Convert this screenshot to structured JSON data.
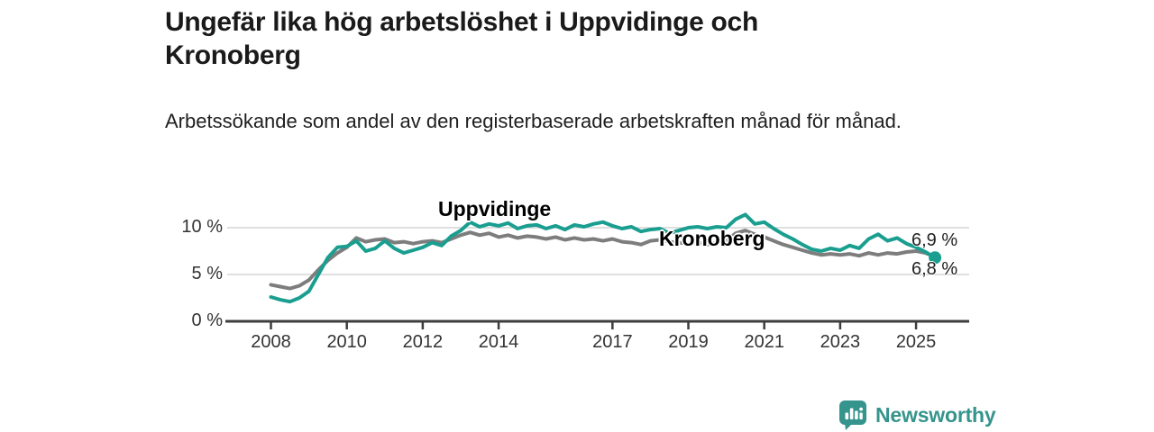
{
  "header": {
    "title": "Ungefär lika hög arbetslöshet i Uppvidinge och Kronoberg",
    "subtitle": "Arbetssökande som andel av den registerbaserade arbetskraften månad för månad."
  },
  "chart_data": {
    "type": "line",
    "title": "Ungefär lika hög arbetslöshet i Uppvidinge och Kronoberg",
    "subtitle": "Arbetssökande som andel av den registerbaserade arbetskraften månad för månad.",
    "x_unit": "year (monthly observations)",
    "y_unit": "percent",
    "x_ticks": [
      2008,
      2010,
      2012,
      2014,
      2017,
      2019,
      2021,
      2023,
      2025
    ],
    "y_ticks": [
      0,
      5,
      10
    ],
    "y_tick_suffix": " %",
    "xlim": [
      2006.8,
      2026.4
    ],
    "ylim": [
      0,
      12.6
    ],
    "grid": "horizontal",
    "legend_position": "inline-labels",
    "x": [
      2008.0,
      2008.25,
      2008.5,
      2008.75,
      2009.0,
      2009.25,
      2009.5,
      2009.75,
      2010.0,
      2010.25,
      2010.5,
      2010.75,
      2011.0,
      2011.25,
      2011.5,
      2011.75,
      2012.0,
      2012.25,
      2012.5,
      2012.75,
      2013.0,
      2013.25,
      2013.5,
      2013.75,
      2014.0,
      2014.25,
      2014.5,
      2014.75,
      2015.0,
      2015.25,
      2015.5,
      2015.75,
      2016.0,
      2016.25,
      2016.5,
      2016.75,
      2017.0,
      2017.25,
      2017.5,
      2017.75,
      2018.0,
      2018.25,
      2018.5,
      2018.75,
      2019.0,
      2019.25,
      2019.5,
      2019.75,
      2020.0,
      2020.25,
      2020.5,
      2020.75,
      2021.0,
      2021.25,
      2021.5,
      2021.75,
      2022.0,
      2022.25,
      2022.5,
      2022.75,
      2023.0,
      2023.25,
      2023.5,
      2023.75,
      2024.0,
      2024.25,
      2024.5,
      2024.75,
      2025.0,
      2025.25,
      2025.5
    ],
    "series": [
      {
        "name": "Uppvidinge",
        "color": "#1a9e90",
        "end_dot": true,
        "end_label": "6,8 %",
        "last_value": 6.8,
        "values": [
          2.6,
          2.3,
          2.1,
          2.5,
          3.2,
          5.0,
          6.8,
          7.9,
          8.0,
          8.6,
          7.5,
          7.8,
          8.6,
          7.8,
          7.3,
          7.6,
          7.9,
          8.4,
          8.1,
          9.1,
          9.7,
          10.6,
          10.1,
          10.4,
          10.2,
          10.5,
          9.9,
          10.2,
          10.3,
          9.9,
          10.2,
          9.8,
          10.3,
          10.1,
          10.4,
          10.6,
          10.2,
          9.9,
          10.1,
          9.6,
          9.8,
          9.9,
          9.4,
          9.7,
          10.0,
          10.1,
          9.9,
          10.1,
          10.0,
          10.9,
          11.4,
          10.4,
          10.6,
          9.9,
          9.3,
          8.8,
          8.2,
          7.7,
          7.5,
          7.8,
          7.6,
          8.1,
          7.8,
          8.8,
          9.3,
          8.6,
          8.9,
          8.3,
          7.9,
          7.4,
          6.8
        ]
      },
      {
        "name": "Kronoberg",
        "color": "#7d7d7d",
        "end_dot": false,
        "end_label": "6,9 %",
        "last_value": 6.9,
        "values": [
          3.9,
          3.7,
          3.5,
          3.8,
          4.4,
          5.5,
          6.5,
          7.3,
          7.9,
          8.9,
          8.5,
          8.7,
          8.8,
          8.4,
          8.5,
          8.3,
          8.5,
          8.6,
          8.4,
          8.8,
          9.2,
          9.5,
          9.2,
          9.4,
          9.0,
          9.2,
          8.9,
          9.1,
          9.0,
          8.8,
          9.0,
          8.7,
          8.9,
          8.7,
          8.8,
          8.6,
          8.8,
          8.5,
          8.4,
          8.2,
          8.6,
          8.7,
          8.5,
          8.4,
          8.3,
          8.4,
          8.2,
          8.4,
          8.6,
          9.4,
          9.7,
          9.3,
          9.0,
          8.6,
          8.2,
          7.9,
          7.6,
          7.3,
          7.1,
          7.2,
          7.1,
          7.2,
          7.0,
          7.3,
          7.1,
          7.3,
          7.2,
          7.4,
          7.5,
          7.3,
          6.9
        ]
      }
    ],
    "colors": {
      "uppvidinge_label": "#1a9e90",
      "kronoberg_label": "#8c8c8c",
      "gridline": "#cccccc",
      "axis": "#3d3d3d",
      "tick_text": "#333333"
    }
  },
  "footer": {
    "brand": "Newsworthy",
    "brand_color": "#35948c"
  }
}
